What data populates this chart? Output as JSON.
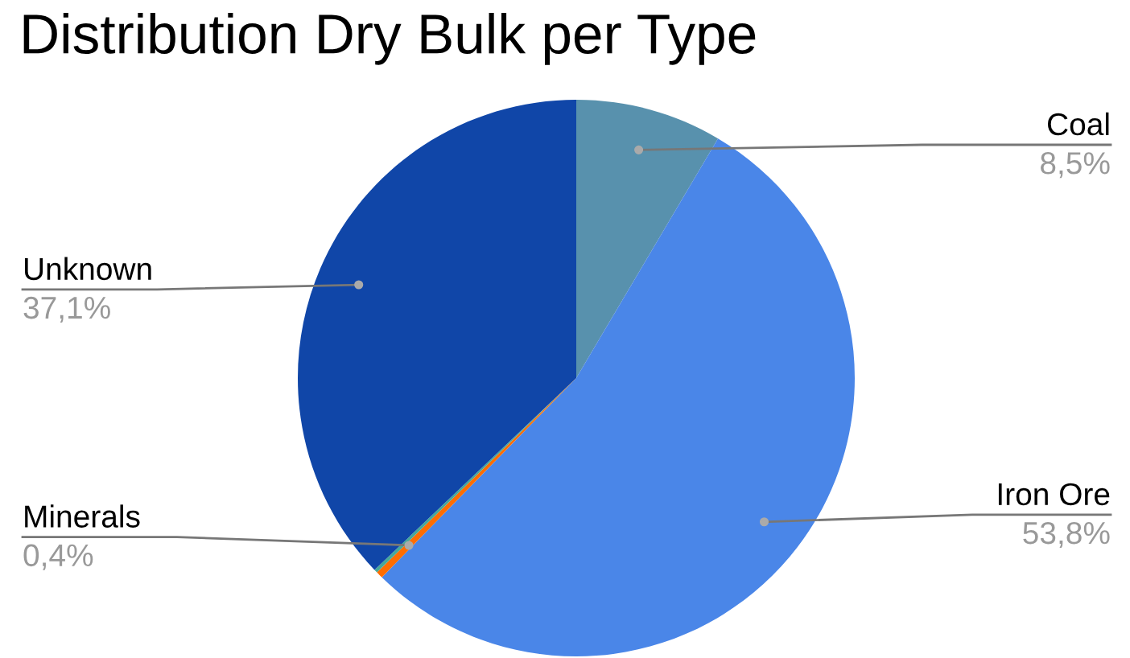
{
  "chart_data": {
    "type": "pie",
    "title": "Distribution Dry Bulk per Type",
    "categories": [
      "Coal",
      "Iron Ore",
      "Minerals",
      null,
      "Unknown"
    ],
    "values": [
      8.5,
      53.8,
      0.4,
      0.2,
      37.1
    ],
    "value_labels": [
      "8,5%",
      "53,8%",
      "0,4%",
      null,
      "37,1%"
    ],
    "colors": [
      "#5891ad",
      "#4a86e8",
      "#ff6d01",
      "#46a89a",
      "#1046a8"
    ],
    "legend": false
  }
}
